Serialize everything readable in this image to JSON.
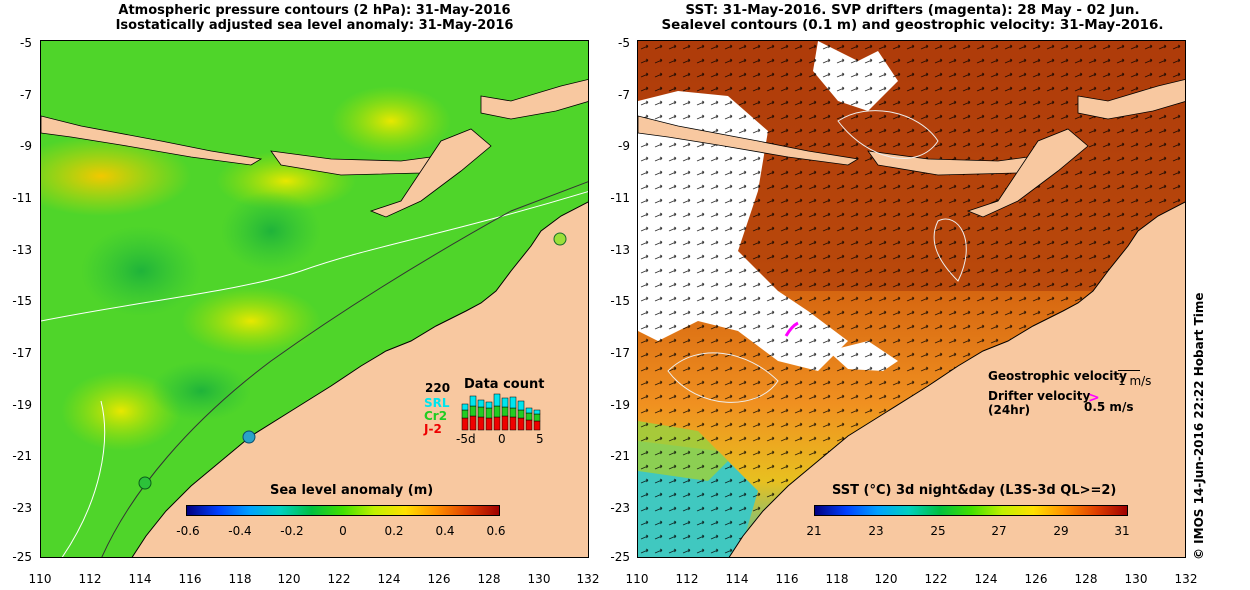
{
  "left_panel": {
    "title_line1": "Atmospheric pressure contours (2 hPa): 31-May-2016",
    "title_line2": "Isostatically adjusted sea level anomaly: 31-May-2016",
    "colorbar_label": "Sea level anomaly (m)",
    "colorbar_ticks": [
      "-0.6",
      "-0.4",
      "-0.2",
      "0",
      "0.2",
      "0.4",
      "0.6"
    ],
    "data_count": {
      "heading": "Data count",
      "max_label": "220",
      "series": [
        {
          "name": "SRL",
          "color": "#00e5ee"
        },
        {
          "name": "Cr2",
          "color": "#22cc22"
        },
        {
          "name": "J-2",
          "color": "#ee0000"
        }
      ],
      "axis_ticks": [
        "-5d",
        "0",
        "5"
      ]
    }
  },
  "right_panel": {
    "title_line1": "SST: 31-May-2016. SVP drifters (magenta): 28 May - 02 Jun.",
    "title_line2": "Sealevel contours (0.1 m) and geostrophic velocity: 31-May-2016.",
    "colorbar_label": "SST (°C) 3d night&day (L3S-3d QL>=2)",
    "colorbar_ticks": [
      "21",
      "23",
      "25",
      "27",
      "29",
      "31"
    ],
    "legend": {
      "geostrophic_label": "Geostrophic velocity",
      "geostrophic_scale": "1 m/s",
      "drifter_label_1": "Drifter velocity",
      "drifter_label_2": "(24hr)",
      "drifter_scale": "0.5 m/s"
    }
  },
  "axes": {
    "lon_ticks": [
      "110",
      "112",
      "114",
      "116",
      "118",
      "120",
      "122",
      "124",
      "126",
      "128",
      "130",
      "132"
    ],
    "lat_ticks": [
      "-5",
      "-7",
      "-9",
      "-11",
      "-13",
      "-15",
      "-17",
      "-19",
      "-21",
      "-23",
      "-25"
    ]
  },
  "side_label": "© IMOS 14-Jun-2016 22:22 Hobart Time",
  "colors": {
    "land": "#f8c8a0",
    "sla_field": "#49d32c",
    "sst_field": "#c65410",
    "drifter": "#ff00ff",
    "cloud": "#ffffff"
  }
}
